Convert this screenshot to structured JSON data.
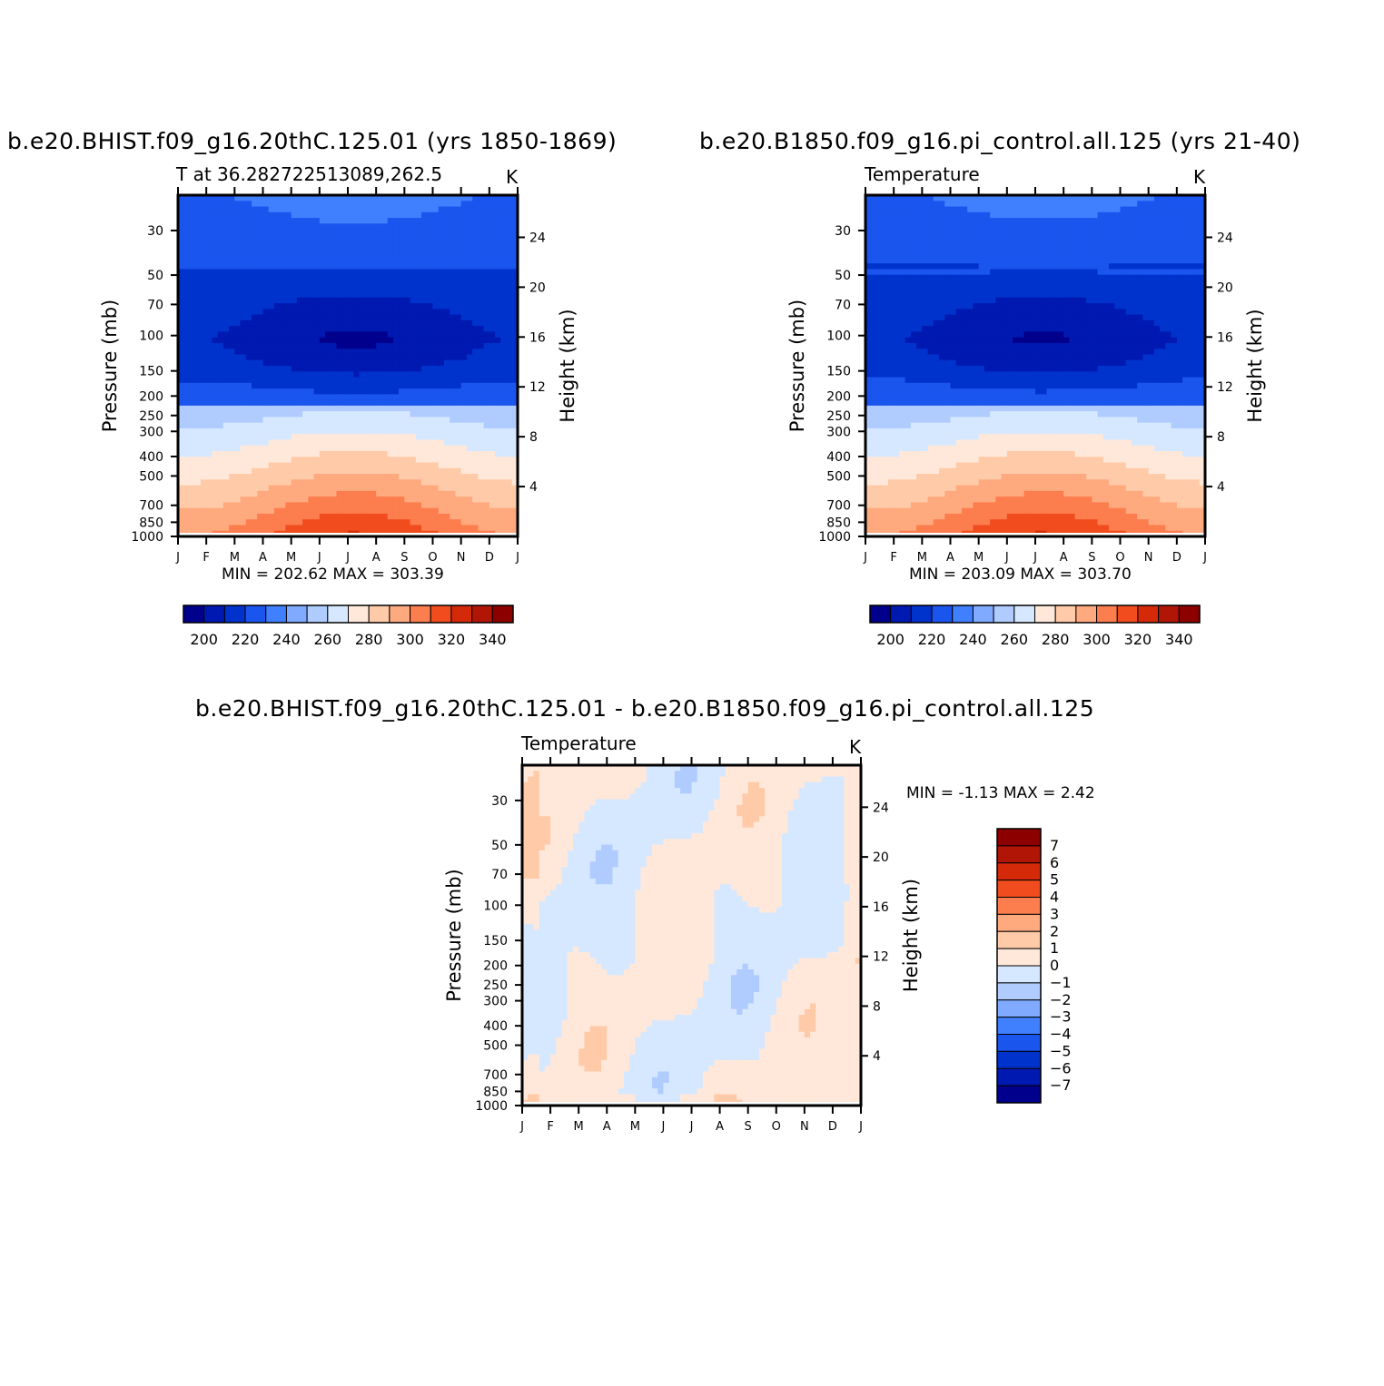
{
  "panels": [
    {
      "title": "b.e20.BHIST.f09_g16.20thC.125.01 (yrs 1850-1869)",
      "left_label": "T at 36.282722513089,262.5",
      "right_label": "K",
      "minmax": "MIN = 202.62 MAX = 303.39",
      "yaxis_label": "Pressure (mb)",
      "y2axis_label": "Height (km)"
    },
    {
      "title": "b.e20.B1850.f09_g16.pi_control.all.125 (yrs 21-40)",
      "left_label": "Temperature",
      "right_label": "K",
      "minmax": "MIN = 203.09 MAX = 303.70",
      "yaxis_label": "Pressure (mb)",
      "y2axis_label": "Height (km)"
    },
    {
      "title": "b.e20.BHIST.f09_g16.20thC.125.01 - b.e20.B1850.f09_g16.pi_control.all.125",
      "left_label": "Temperature",
      "right_label": "K",
      "minmax": "MIN = -1.13 MAX = 2.42",
      "yaxis_label": "Pressure (mb)",
      "y2axis_label": "Height (km)"
    }
  ],
  "chart_data": [
    {
      "type": "heatmap",
      "title": "b.e20.BHIST.f09_g16.20thC.125.01 (yrs 1850-1869)",
      "xlabel": "",
      "ylabel": "Pressure (mb)",
      "y2label": "Height (km)",
      "x_ticks": [
        "J",
        "F",
        "M",
        "A",
        "M",
        "J",
        "J",
        "A",
        "S",
        "O",
        "N",
        "D",
        "J"
      ],
      "pressure_ticks": [
        30,
        50,
        70,
        100,
        150,
        200,
        250,
        300,
        400,
        500,
        700,
        850,
        1000
      ],
      "pressure_range": [
        20,
        1000
      ],
      "height_ticks": [
        4,
        8,
        12,
        16,
        20,
        24
      ],
      "colorbar_levels": [
        200,
        220,
        240,
        260,
        280,
        300,
        320,
        340
      ],
      "min": 202.62,
      "max": 303.39
    },
    {
      "type": "heatmap",
      "title": "b.e20.B1850.f09_g16.pi_control.all.125 (yrs 21-40)",
      "xlabel": "",
      "ylabel": "Pressure (mb)",
      "y2label": "Height (km)",
      "x_ticks": [
        "J",
        "F",
        "M",
        "A",
        "M",
        "J",
        "J",
        "A",
        "S",
        "O",
        "N",
        "D",
        "J"
      ],
      "pressure_ticks": [
        30,
        50,
        70,
        100,
        150,
        200,
        250,
        300,
        400,
        500,
        700,
        850,
        1000
      ],
      "pressure_range": [
        20,
        1000
      ],
      "height_ticks": [
        4,
        8,
        12,
        16,
        20,
        24
      ],
      "colorbar_levels": [
        200,
        220,
        240,
        260,
        280,
        300,
        320,
        340
      ],
      "min": 203.09,
      "max": 303.7
    },
    {
      "type": "heatmap",
      "title": "b.e20.BHIST.f09_g16.20thC.125.01 - b.e20.B1850.f09_g16.pi_control.all.125",
      "xlabel": "",
      "ylabel": "Pressure (mb)",
      "y2label": "Height (km)",
      "x_ticks": [
        "J",
        "F",
        "M",
        "A",
        "M",
        "J",
        "J",
        "A",
        "S",
        "O",
        "N",
        "D",
        "J"
      ],
      "pressure_ticks": [
        30,
        50,
        70,
        100,
        150,
        200,
        250,
        300,
        400,
        500,
        700,
        850,
        1000
      ],
      "pressure_range": [
        20,
        1000
      ],
      "height_ticks": [
        4,
        8,
        12,
        16,
        20,
        24
      ],
      "colorbar_levels": [
        -7,
        -6,
        -5,
        -4,
        -3,
        -2,
        -1,
        0,
        1,
        2,
        3,
        4,
        5,
        6,
        7
      ],
      "min": -1.13,
      "max": 2.42
    }
  ],
  "colors": {
    "abs_palette": [
      "#00008c",
      "#0019b0",
      "#0033cc",
      "#1a55ee",
      "#4080ff",
      "#80aaff",
      "#b0ccff",
      "#d6e8ff",
      "#ffe8d9",
      "#ffcaa8",
      "#ffa97f",
      "#fc7d4e",
      "#f04c1e",
      "#d42a0a",
      "#b01505",
      "#8c0000"
    ],
    "diff_palette": [
      "#00008c",
      "#0019b0",
      "#0033cc",
      "#1a55ee",
      "#4080ff",
      "#80aaff",
      "#b0ccff",
      "#d6e8ff",
      "#ffe8d9",
      "#ffcaa8",
      "#ffa97f",
      "#fc7d4e",
      "#f04c1e",
      "#d42a0a",
      "#b01505",
      "#8c0000"
    ]
  }
}
